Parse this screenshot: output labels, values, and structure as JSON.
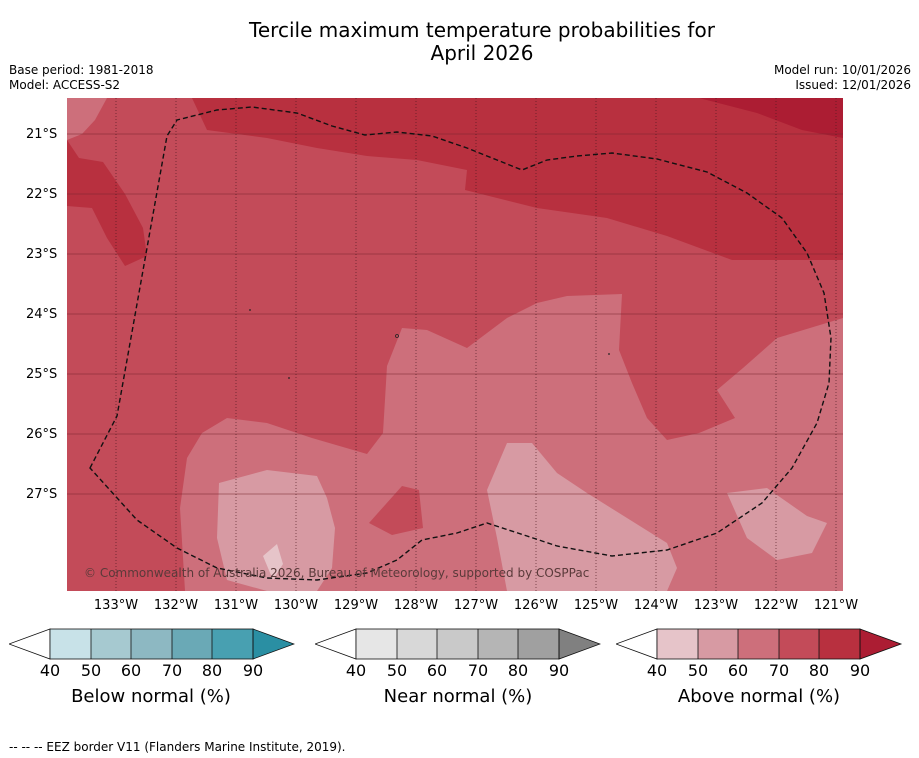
{
  "title_line1": "Tercile maximum temperature probabilities for",
  "title_line2": "April 2026",
  "base_period": "Base period: 1981-2018",
  "model": "Model: ACCESS-S2",
  "model_run": "Model run: 10/01/2026",
  "issued": "Issued: 12/01/2026",
  "lat_labels": [
    "21°S",
    "22°S",
    "23°S",
    "24°S",
    "25°S",
    "26°S",
    "27°S"
  ],
  "lon_labels": [
    "133°W",
    "132°W",
    "131°W",
    "130°W",
    "129°W",
    "128°W",
    "127°W",
    "126°W",
    "125°W",
    "124°W",
    "123°W",
    "122°W",
    "121°W"
  ],
  "copyright": "© Commonwealth of Australia 2026, Bureau of Meteorology, supported by COSPPac",
  "colors": {
    "above_40": "#e6c4c9",
    "above_50": "#d79aa3",
    "above_60": "#cd6f7b",
    "above_70": "#c34b59",
    "above_80": "#b8303f",
    "above_90": "#ac1d33",
    "below": [
      "#c8e2e8",
      "#a6c9d0",
      "#8db8c2",
      "#6aa9b6",
      "#48a0b1",
      "#2a8fa3"
    ],
    "near": [
      "#e6e6e6",
      "#d8d8d8",
      "#c9c9c9",
      "#b5b5b5",
      "#a0a0a0",
      "#808080"
    ]
  },
  "colorbars": [
    {
      "label": "Below normal (%)",
      "ticks": [
        "40",
        "50",
        "60",
        "70",
        "80",
        "90"
      ]
    },
    {
      "label": "Near normal (%)",
      "ticks": [
        "40",
        "50",
        "60",
        "70",
        "80",
        "90"
      ]
    },
    {
      "label": "Above normal (%)",
      "ticks": [
        "40",
        "50",
        "60",
        "70",
        "80",
        "90"
      ]
    }
  ],
  "footnote": "-- -- -- EEZ border V11 (Flanders Marine Institute, 2019)."
}
